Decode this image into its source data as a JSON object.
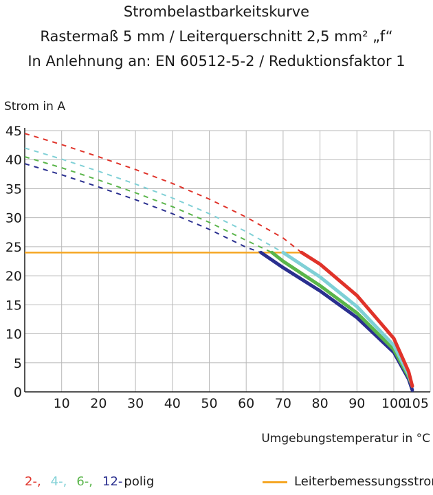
{
  "chart_data": {
    "type": "line",
    "title": "Strombelastbarkeitskurve",
    "subtitle_lines": [
      "Rastermaß 5 mm / Leiterquerschnitt 2,5 mm² „f“",
      "In Anlehnung an: EN 60512-5-2 / Reduktionsfaktor 1"
    ],
    "xlabel": "Umgebungstemperatur in °C",
    "ylabel": "Strom in A",
    "xlim": [
      0,
      108
    ],
    "ylim": [
      0,
      45
    ],
    "x_ticks": [
      10,
      20,
      30,
      40,
      50,
      60,
      70,
      80,
      90,
      100,
      105
    ],
    "y_ticks": [
      0,
      5,
      10,
      15,
      20,
      25,
      30,
      35,
      40,
      45
    ],
    "grid": true,
    "series": [
      {
        "name": "2-",
        "color": "#e0332a",
        "dashed": [
          [
            0,
            44.5
          ],
          [
            10,
            42.6
          ],
          [
            20,
            40.5
          ],
          [
            30,
            38.3
          ],
          [
            40,
            35.9
          ],
          [
            50,
            33.2
          ],
          [
            60,
            30.1
          ],
          [
            70,
            26.5
          ],
          [
            75,
            24
          ]
        ],
        "solid": [
          [
            75,
            24
          ],
          [
            80,
            22
          ],
          [
            90,
            16.6
          ],
          [
            100,
            9.2
          ],
          [
            104,
            3.5
          ],
          [
            105,
            1
          ]
        ]
      },
      {
        "name": "4-",
        "color": "#7fd0d6",
        "dashed": [
          [
            0,
            42
          ],
          [
            10,
            40.1
          ],
          [
            20,
            38
          ],
          [
            30,
            35.8
          ],
          [
            40,
            33.4
          ],
          [
            50,
            30.7
          ],
          [
            60,
            27.6
          ],
          [
            70,
            24
          ]
        ],
        "solid": [
          [
            70,
            24
          ],
          [
            80,
            19.8
          ],
          [
            90,
            14.7
          ],
          [
            100,
            8
          ],
          [
            104,
            3
          ],
          [
            105,
            1
          ]
        ]
      },
      {
        "name": "6-",
        "color": "#5ab54a",
        "dashed": [
          [
            0,
            40.5
          ],
          [
            10,
            38.6
          ],
          [
            20,
            36.5
          ],
          [
            30,
            34.3
          ],
          [
            40,
            31.9
          ],
          [
            50,
            29.2
          ],
          [
            60,
            26.1
          ],
          [
            67,
            24
          ]
        ],
        "solid": [
          [
            67,
            24
          ],
          [
            70,
            22.5
          ],
          [
            80,
            18.3
          ],
          [
            90,
            13.6
          ],
          [
            100,
            7.3
          ],
          [
            104,
            2.6
          ],
          [
            105,
            1
          ]
        ]
      },
      {
        "name": "12-",
        "color": "#2a2f8f",
        "dashed": [
          [
            0,
            39.3
          ],
          [
            10,
            37.4
          ],
          [
            20,
            35.3
          ],
          [
            30,
            33.1
          ],
          [
            40,
            30.7
          ],
          [
            50,
            28
          ],
          [
            60,
            24.9
          ],
          [
            64,
            24
          ]
        ],
        "solid": [
          [
            64,
            24
          ],
          [
            70,
            21.4
          ],
          [
            80,
            17.4
          ],
          [
            90,
            12.8
          ],
          [
            100,
            6.8
          ],
          [
            104,
            2.2
          ],
          [
            105,
            0.3
          ]
        ]
      }
    ],
    "rated_current": {
      "name": "Leiterbemessungsstrom",
      "value": 24,
      "x": [
        0,
        75
      ],
      "color": "#f5a623"
    },
    "legend": {
      "poles_suffix": "polig",
      "rated_label": "Leiterbemessungsstrom",
      "placement": "bottom"
    }
  }
}
